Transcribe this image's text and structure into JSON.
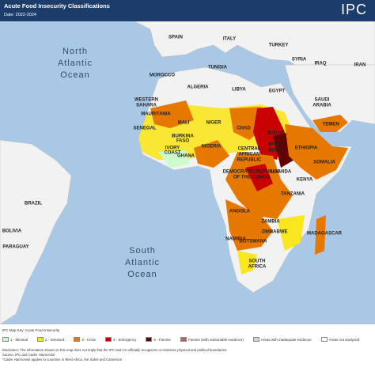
{
  "header": {
    "title": "Acute Food Insecurity Classifications",
    "date": "Date: 2022-2024",
    "logo": "IPC"
  },
  "map": {
    "labels": [
      "North",
      "Atlantic",
      "Ocean",
      "SPAIN",
      "ITALY",
      "TURKEY",
      "SYRIA",
      "IRAQ",
      "IRAN",
      "TUNISIA",
      "MOROCCO",
      "ALGERIA",
      "LIBYA",
      "EGYPT",
      "SAUDI",
      "ARABIA",
      "WESTERN",
      "SAHARA",
      "MAURITANIA",
      "MALI",
      "NIGER",
      "CHAD",
      "SUDAN",
      "YEMEN",
      "SENEGAL",
      "BURKINA",
      "FASO",
      "NIGERIA",
      "IVORY",
      "COAST",
      "GHANA",
      "CENTRAL",
      "AFRICAN",
      "REPUBLIC",
      "SOUTH",
      "SUDAN",
      "ETHIOPIA",
      "SOMALIA",
      "UGANDA",
      "KENYA",
      "DEMOCRATIC REPUBLIC",
      "OF THE CONGO",
      "TANZANIA",
      "ANGOLA",
      "ZAMBIA",
      "ZIMBABWE",
      "NAMIBIA",
      "BOTSWANA",
      "MADAGASCAR",
      "SOUTH",
      "AFRICA",
      "BRAZIL",
      "BOLIVIA",
      "PARAGUAY",
      "South",
      "Atlantic",
      "Ocean"
    ]
  },
  "legend": {
    "title": "IPC Map Key: Acute Food Insecurity",
    "items": [
      {
        "label": "1 - Minimal",
        "color": "#cdfacd"
      },
      {
        "label": "2 - Stressed",
        "color": "#fae61e"
      },
      {
        "label": "3 - Crisis",
        "color": "#e67800"
      },
      {
        "label": "4 - Emergency",
        "color": "#c80000"
      },
      {
        "label": "5 - Famine",
        "color": "#640000"
      },
      {
        "label": "Famine (with reasonable evidence)",
        "color": "#b46464"
      },
      {
        "label": "Areas with inadequate evidence",
        "color": "#d2d2d2"
      },
      {
        "label": "Areas not analyzed",
        "color": "#ffffff"
      }
    ]
  },
  "footer": [
    "Disclaimer: The information shown on this map does not imply that the IPC and CH officially recognizes or endorses physical and political boundaries.",
    "Source: IPC and Cadre Harmonisé",
    "*Cadre Harmonisé applies to countries in West Africa, the Sahel and Cameroon"
  ]
}
